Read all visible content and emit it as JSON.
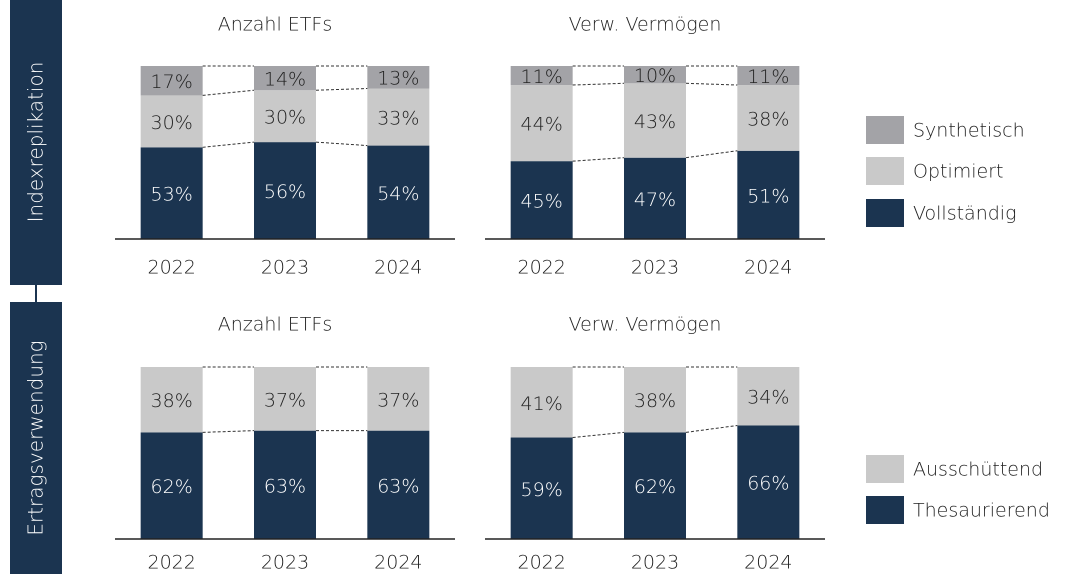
{
  "rows": [
    "Indexreplikation",
    "Ertragsverwendung"
  ],
  "chart_data": [
    {
      "type": "stacked-bar",
      "title": "Anzahl ETFs",
      "categories": [
        "2022",
        "2023",
        "2024"
      ],
      "ylim": [
        0,
        100
      ],
      "series": [
        {
          "name": "Vollständig",
          "color": "#1b3450",
          "values": [
            53,
            56,
            54
          ],
          "value_labels": [
            "53%",
            "56%",
            "54%"
          ]
        },
        {
          "name": "Optimiert",
          "color": "#c9c9c9",
          "values": [
            30,
            30,
            33
          ],
          "value_labels": [
            "30%",
            "30%",
            "33%"
          ]
        },
        {
          "name": "Synthetisch",
          "color": "#a3a3a7",
          "values": [
            17,
            14,
            13
          ],
          "value_labels": [
            "17%",
            "14%",
            "13%"
          ]
        }
      ]
    },
    {
      "type": "stacked-bar",
      "title": "Verw. Vermögen",
      "categories": [
        "2022",
        "2023",
        "2024"
      ],
      "ylim": [
        0,
        100
      ],
      "series": [
        {
          "name": "Vollständig",
          "color": "#1b3450",
          "values": [
            45,
            47,
            51
          ],
          "value_labels": [
            "45%",
            "47%",
            "51%"
          ]
        },
        {
          "name": "Optimiert",
          "color": "#c9c9c9",
          "values": [
            44,
            43,
            38
          ],
          "value_labels": [
            "44%",
            "43%",
            "38%"
          ]
        },
        {
          "name": "Synthetisch",
          "color": "#a3a3a7",
          "values": [
            11,
            10,
            11
          ],
          "value_labels": [
            "11%",
            "10%",
            "11%"
          ]
        }
      ]
    },
    {
      "type": "stacked-bar",
      "title": "Anzahl ETFs",
      "categories": [
        "2022",
        "2023",
        "2024"
      ],
      "ylim": [
        0,
        100
      ],
      "series": [
        {
          "name": "Thesaurierend",
          "color": "#1b3450",
          "values": [
            62,
            63,
            63
          ],
          "value_labels": [
            "62%",
            "63%",
            "63%"
          ]
        },
        {
          "name": "Ausschüttend",
          "color": "#c9c9c9",
          "values": [
            38,
            37,
            37
          ],
          "value_labels": [
            "38%",
            "37%",
            "37%"
          ]
        }
      ]
    },
    {
      "type": "stacked-bar",
      "title": "Verw. Vermögen",
      "categories": [
        "2022",
        "2023",
        "2024"
      ],
      "ylim": [
        0,
        100
      ],
      "series": [
        {
          "name": "Thesaurierend",
          "color": "#1b3450",
          "values": [
            59,
            62,
            66
          ],
          "value_labels": [
            "59%",
            "62%",
            "66%"
          ]
        },
        {
          "name": "Ausschüttend",
          "color": "#c9c9c9",
          "values": [
            41,
            38,
            34
          ],
          "value_labels": [
            "41%",
            "38%",
            "34%"
          ]
        }
      ]
    }
  ]
}
